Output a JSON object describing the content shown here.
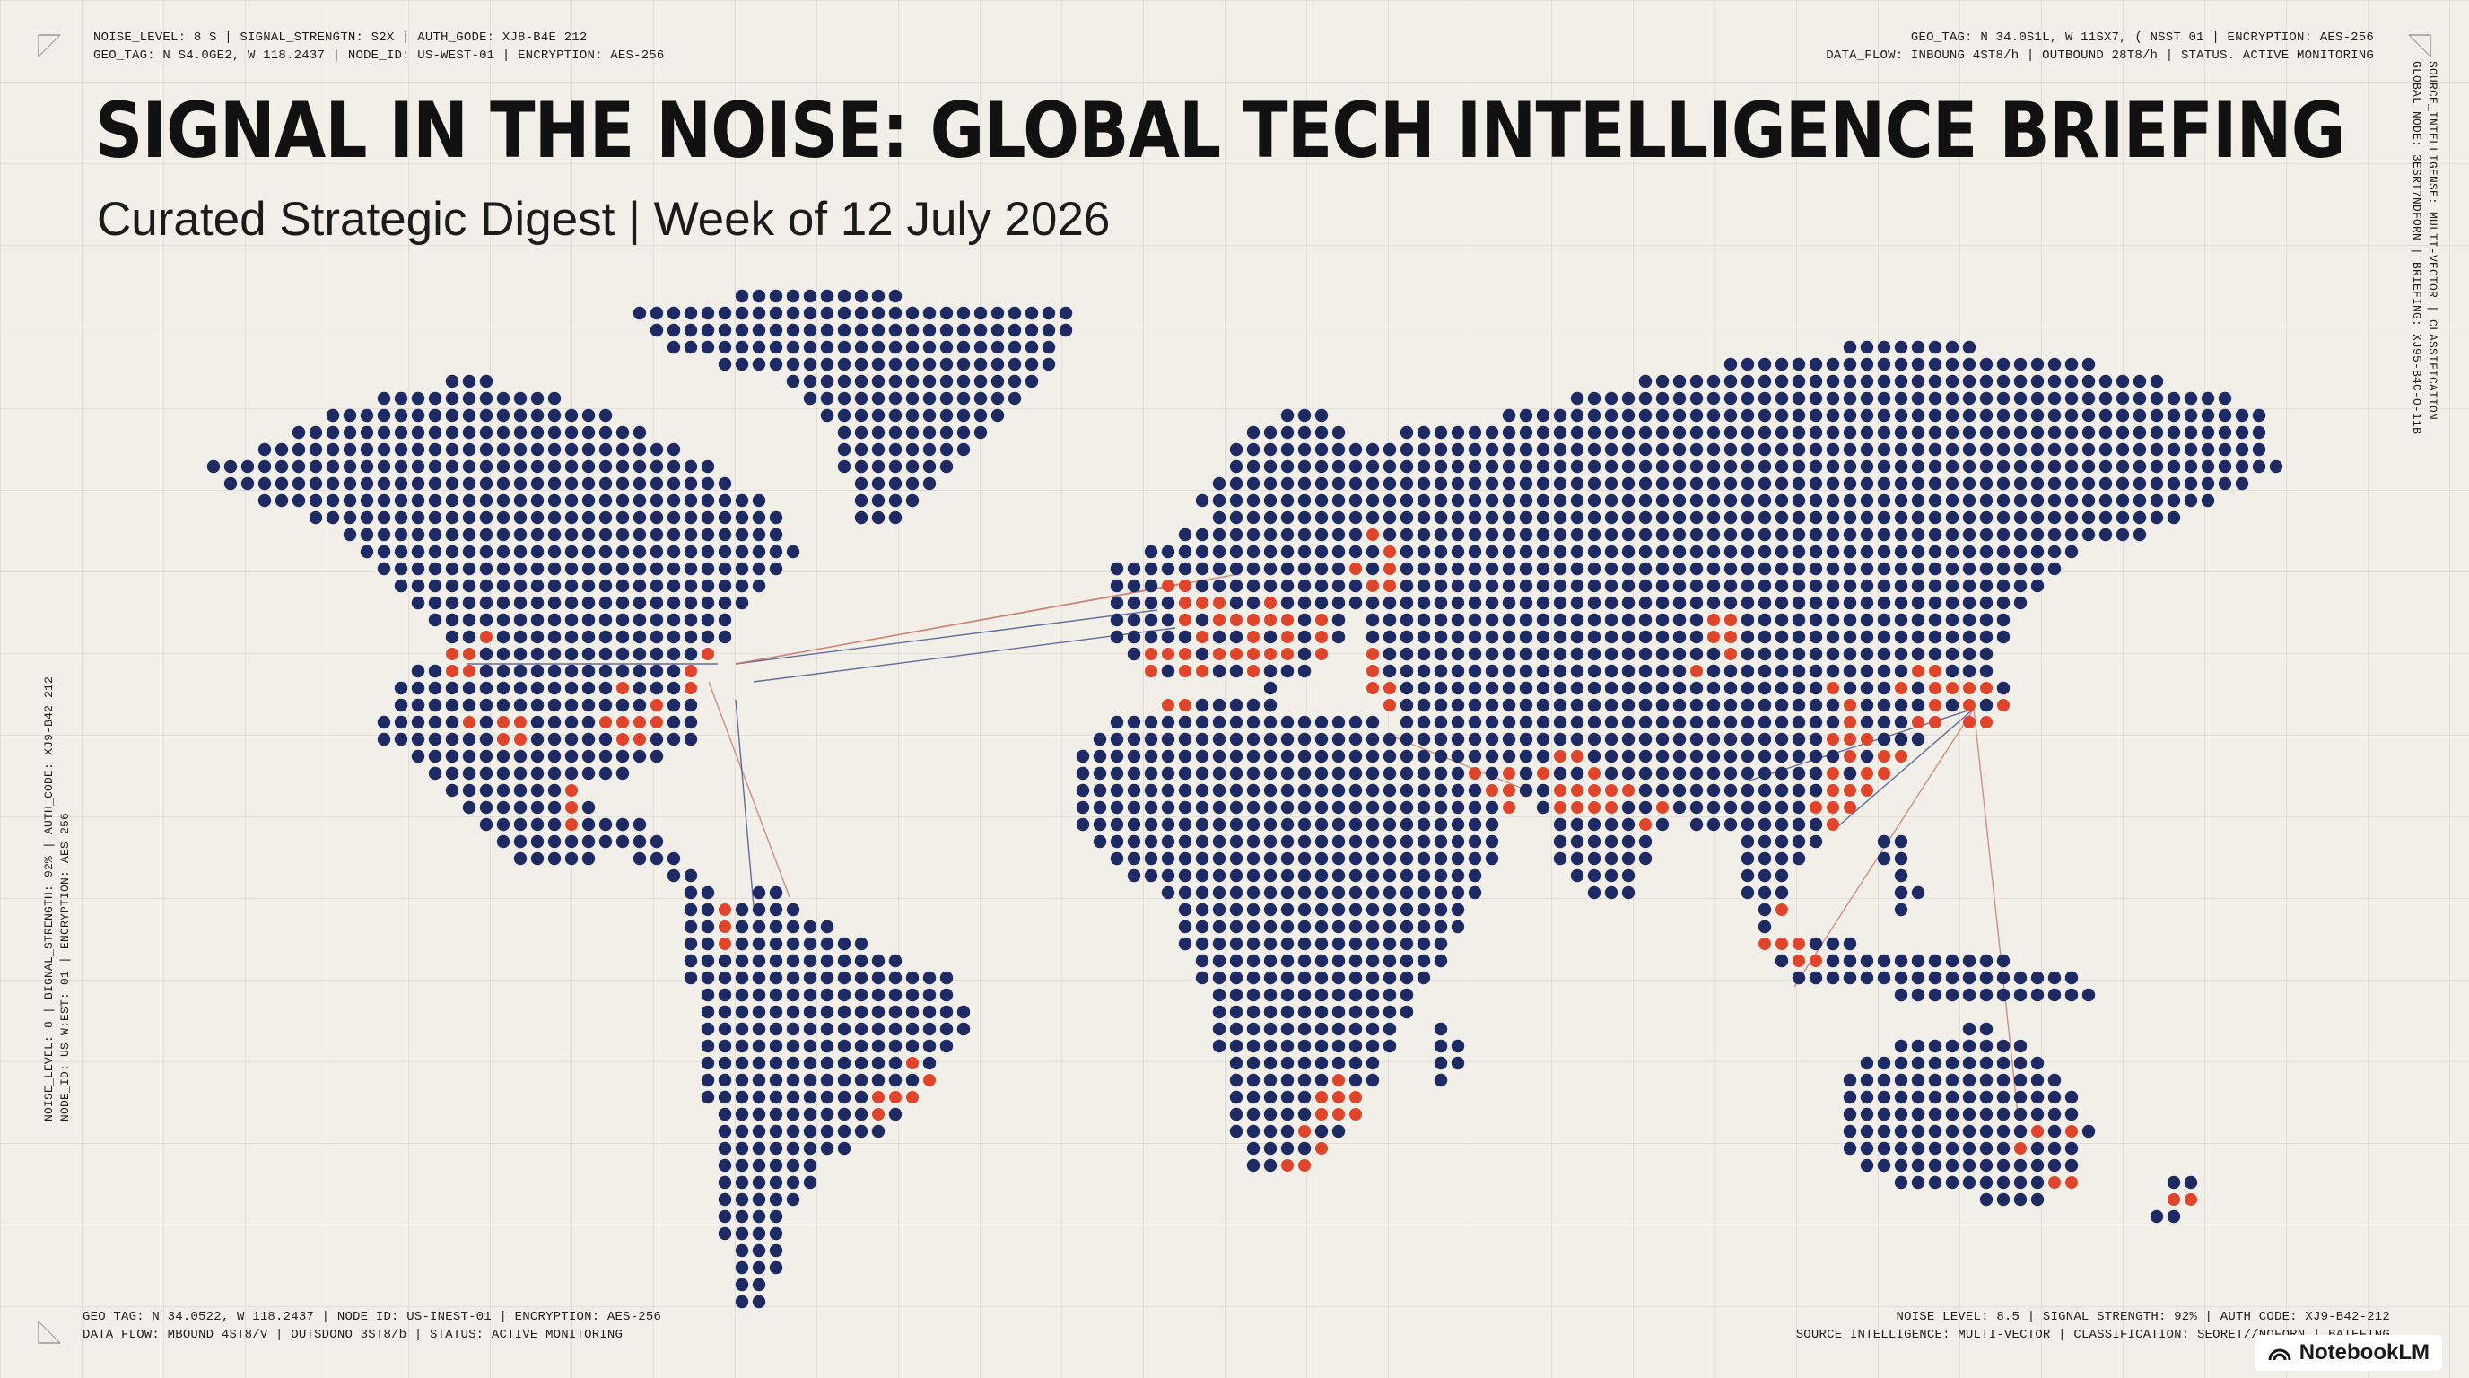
{
  "header": {
    "title": "SIGNAL IN THE NOISE: GLOBAL TECH INTELLIGENCE BRIEFING",
    "subtitle": "Curated Strategic Digest | Week of 12 July 2026"
  },
  "metadata": {
    "top_left": [
      "NOISE_LEVEL: 8 S | SIGNAL_STRENGTN: S2X | AUTH_GODE: XJ8-B4E 212",
      "GEO_TAG: N S4.0GE2, W 118.2437 | NODE_ID: US-WEST-01 | ENCRYPTION: AES-256"
    ],
    "top_right": [
      "GEO_TAG: N 34.0S1L, W 11SX7, ( NSST 01 | ENCRYPTION: AES-256",
      "DATA_FLOW: INBOUNG 4ST8/h | OUTBOUND 28T8/h | STATUS. ACTIVE MONITORING"
    ],
    "bottom_left": [
      "GEO_TAG: N 34.0522, W 118.2437 | NODE_ID: US-INEST-01 | ENCRYPTION: AES-256",
      "DATA_FLOW: MBOUND 4ST8/V | OUTSDONO 3ST8/b | STATUS: ACTIVE MONITORING"
    ],
    "bottom_right": [
      "NOISE_LEVEL: 8.5 | SIGNAL_STRENGTH: 92% | AUTH_CODE: XJ9-B42-212",
      "SOURCE_INTELLIGENCE: MULTI-VECTOR | CLASSIFICATION: SEORET//NOFORN | BAIEFING"
    ],
    "vertical_left": [
      "NOISE_LEVEL: 8 | BIGNAL_STRENGTH: 92% | AUTH_CODE: XJ9-B42 212",
      "NODE_ID: US-W:EST: 01 | ENCRYPTION: AES-256"
    ],
    "vertical_right": [
      "SOURCE_INTELLIGENSE: MULTI-VECTOR | CLASSIFICATION",
      "GLOBAL_NODE: 3ESRT7NDFORN | BRIEFING: XJ95-B4C-O-11B"
    ]
  },
  "brand": {
    "label": "NotebookLM"
  },
  "colors": {
    "land_dot": "#1d2a64",
    "signal_dot": "#e0452b",
    "connection_line": "#c9806f",
    "background": "#f1efe7"
  }
}
